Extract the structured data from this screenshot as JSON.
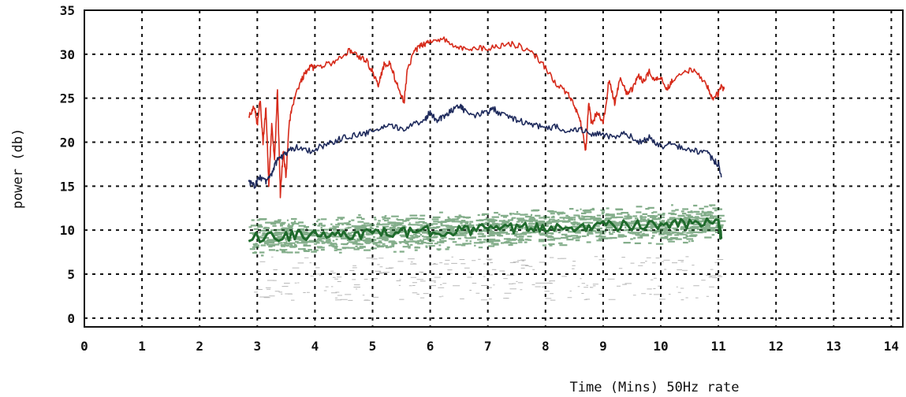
{
  "chart_data": {
    "type": "line",
    "title": "",
    "xlabel": "Time (Mins) 50Hz rate",
    "ylabel": "power (db)",
    "xlim": [
      0,
      14.2
    ],
    "ylim": [
      -1,
      35
    ],
    "xticks": [
      "0",
      "1",
      "2",
      "3",
      "4",
      "5",
      "6",
      "7",
      "8",
      "9",
      "10",
      "11",
      "12",
      "13",
      "14"
    ],
    "yticks": [
      "0",
      "5",
      "10",
      "15",
      "20",
      "25",
      "30",
      "35"
    ],
    "grid": true,
    "legend": "none",
    "series": [
      {
        "color": "#d62a1a",
        "x": [
          2.85,
          2.95,
          3.0,
          3.05,
          3.1,
          3.15,
          3.2,
          3.25,
          3.3,
          3.35,
          3.4,
          3.45,
          3.5,
          3.55,
          3.6,
          3.7,
          3.8,
          3.9,
          4.0,
          4.2,
          4.4,
          4.6,
          4.75,
          4.9,
          5.0,
          5.1,
          5.2,
          5.3,
          5.4,
          5.5,
          5.55,
          5.6,
          5.7,
          5.8,
          5.9,
          6.0,
          6.2,
          6.4,
          6.6,
          6.8,
          7.0,
          7.2,
          7.4,
          7.6,
          7.8,
          8.0,
          8.2,
          8.4,
          8.5,
          8.6,
          8.7,
          8.75,
          8.8,
          8.9,
          9.0,
          9.1,
          9.2,
          9.3,
          9.4,
          9.5,
          9.6,
          9.7,
          9.8,
          9.9,
          10.0,
          10.1,
          10.2,
          10.4,
          10.6,
          10.8,
          10.9,
          11.0,
          11.05,
          11.1
        ],
        "y": [
          23,
          24,
          22,
          25,
          20,
          24,
          15,
          22,
          18,
          26,
          14,
          19,
          16,
          22,
          24,
          26,
          27.5,
          28.5,
          28.5,
          28.8,
          29.3,
          30.5,
          29.8,
          29.2,
          28.0,
          26.5,
          28.8,
          29.0,
          27.0,
          25.0,
          24.8,
          28.0,
          30.0,
          30.8,
          31.2,
          31.5,
          31.8,
          31.0,
          30.5,
          30.8,
          30.6,
          31.0,
          31.2,
          30.8,
          30.0,
          28.5,
          26.5,
          25.5,
          24.0,
          22.5,
          19.0,
          24.5,
          22.0,
          23.5,
          22.0,
          27.0,
          24.5,
          27.5,
          25.5,
          26.0,
          27.5,
          27.0,
          28.0,
          27.0,
          27.5,
          26.0,
          27.0,
          28.2,
          28.0,
          26.5,
          25.0,
          25.5,
          26.5,
          26.0
        ]
      },
      {
        "color": "#1e2a5c",
        "x": [
          2.85,
          2.95,
          3.05,
          3.15,
          3.25,
          3.35,
          3.45,
          3.55,
          3.7,
          3.9,
          4.1,
          4.3,
          4.5,
          4.7,
          4.9,
          5.1,
          5.3,
          5.5,
          5.7,
          5.9,
          6.0,
          6.1,
          6.2,
          6.35,
          6.5,
          6.6,
          6.8,
          7.0,
          7.1,
          7.2,
          7.4,
          7.6,
          7.8,
          8.0,
          8.2,
          8.4,
          8.6,
          8.8,
          9.0,
          9.2,
          9.4,
          9.6,
          9.8,
          10.0,
          10.2,
          10.4,
          10.6,
          10.8,
          10.9,
          11.0,
          11.05
        ],
        "y": [
          15.5,
          15.0,
          16.0,
          15.5,
          16.5,
          18.0,
          18.5,
          19.0,
          19.5,
          19.0,
          19.5,
          20.0,
          20.5,
          20.8,
          21.0,
          21.5,
          21.8,
          21.5,
          22.0,
          22.5,
          23.5,
          22.5,
          22.8,
          23.5,
          24.3,
          23.5,
          23.0,
          23.5,
          23.8,
          23.2,
          22.8,
          22.3,
          22.0,
          21.5,
          21.8,
          21.2,
          21.5,
          21.0,
          20.8,
          20.5,
          21.0,
          20.0,
          20.5,
          19.5,
          19.8,
          19.2,
          19.0,
          18.8,
          18.0,
          17.5,
          16.0
        ]
      },
      {
        "color": "#1f6b2c",
        "x": [
          2.85,
          3.5,
          4.0,
          4.5,
          5.0,
          5.5,
          6.0,
          6.5,
          7.0,
          7.5,
          8.0,
          8.5,
          9.0,
          9.5,
          10.0,
          10.5,
          11.0,
          11.05
        ],
        "y": [
          9.2,
          9.3,
          9.4,
          9.5,
          9.6,
          9.7,
          9.9,
          10.0,
          10.1,
          10.2,
          10.3,
          10.4,
          10.5,
          10.5,
          10.6,
          10.7,
          10.8,
          9.0
        ]
      }
    ]
  }
}
